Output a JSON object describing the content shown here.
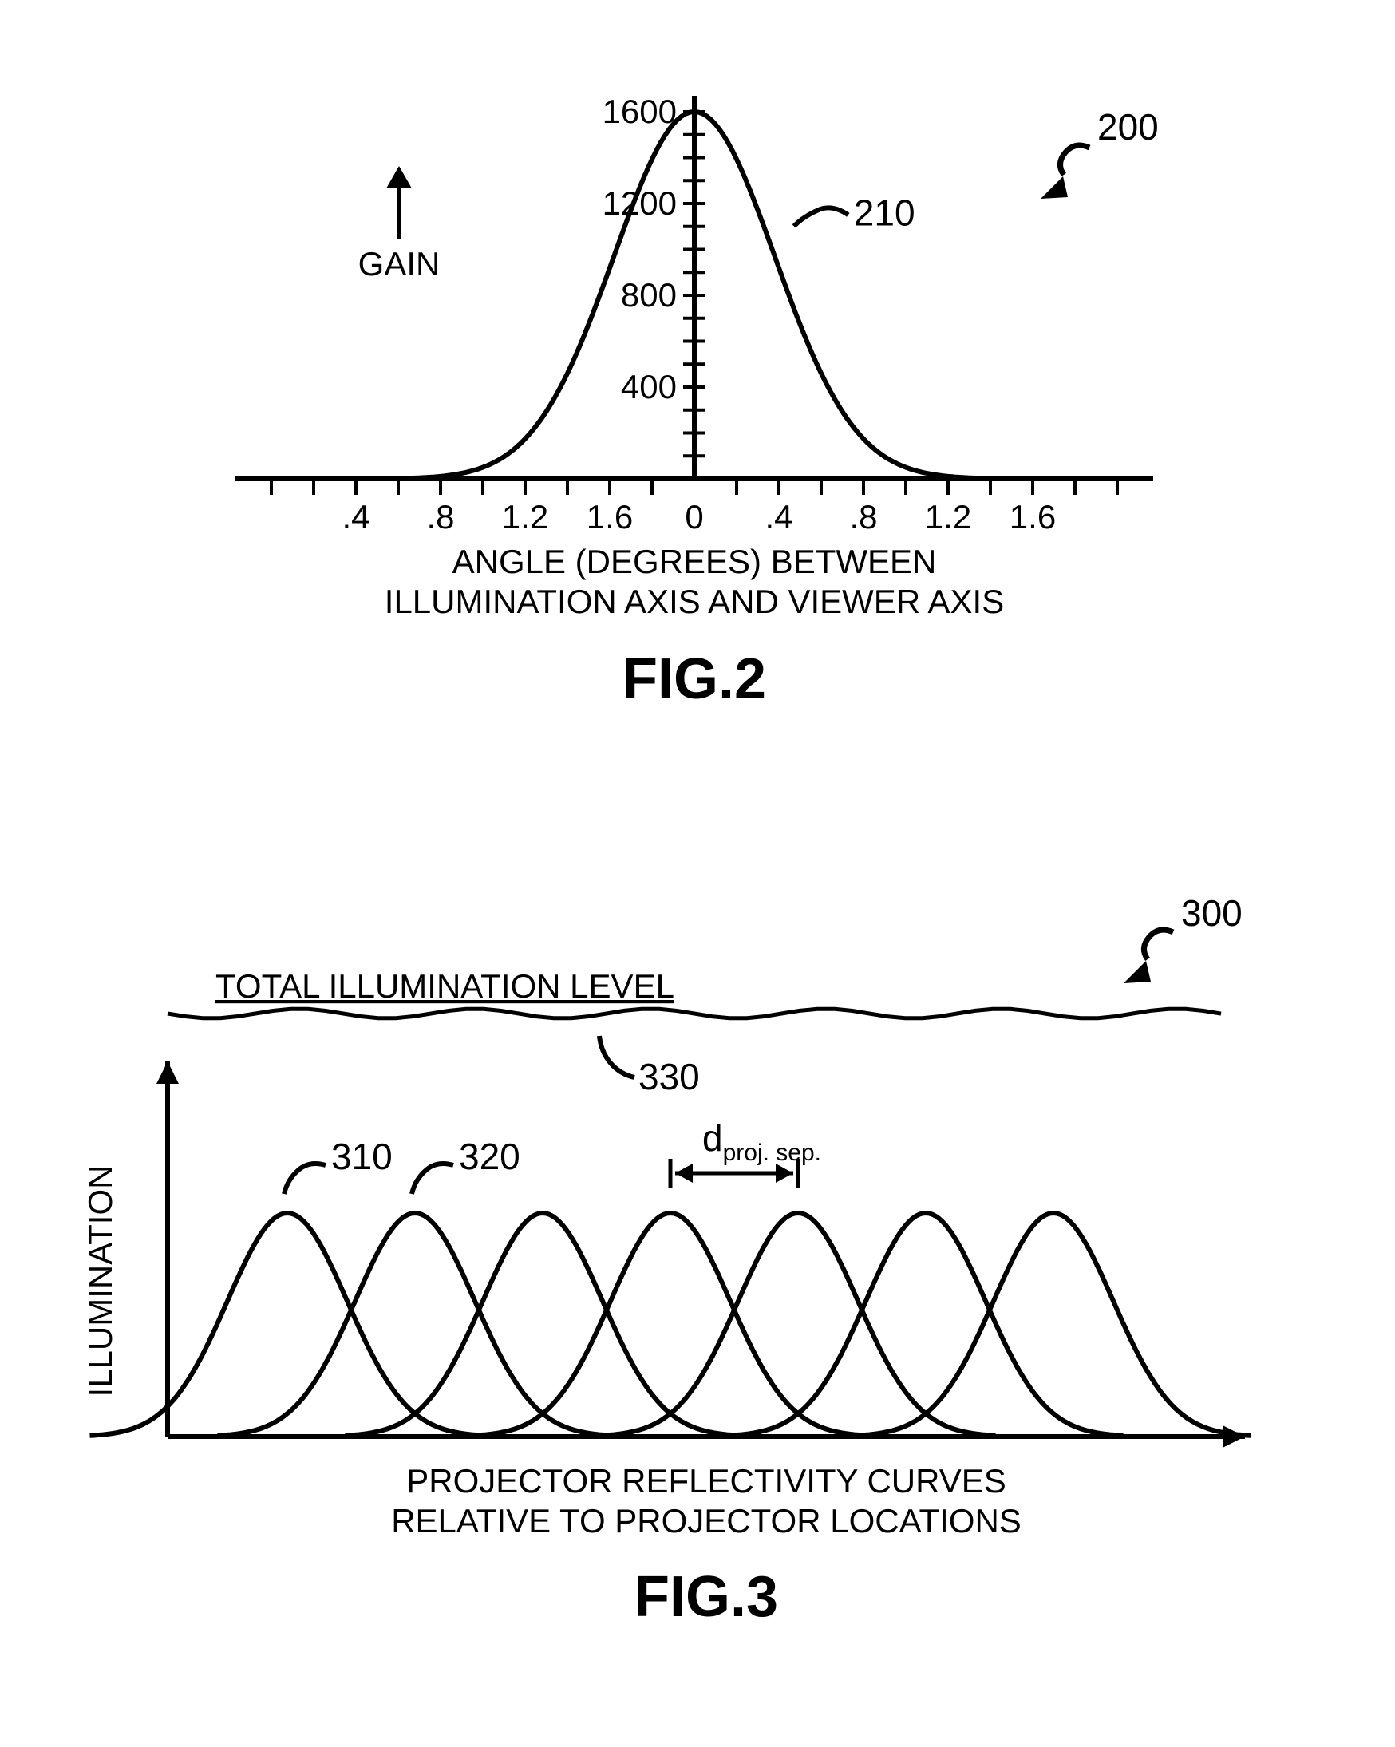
{
  "fig2": {
    "type": "line",
    "title": "FIG.2",
    "ylabel": "GAIN",
    "xlabel_line1": "ANGLE (DEGREES) BETWEEN",
    "xlabel_line2": "ILLUMINATION AXIS AND VIEWER AXIS",
    "ref_figure": "200",
    "ref_curve": "210",
    "x_ticks_left": [
      "1.6",
      "1.2",
      ".8",
      ".4"
    ],
    "x_ticks_right": [
      ".4",
      ".8",
      "1.2",
      "1.6"
    ],
    "x_center": "0",
    "y_ticks": [
      "400",
      "800",
      "1200",
      "1600"
    ],
    "y_max": 1600,
    "x_range": 2.0,
    "sigma": 0.38,
    "stroke": "#000000",
    "stroke_width": 6,
    "axis_stroke_width": 6
  },
  "fig3": {
    "type": "overlapping-gaussians",
    "title": "FIG.3",
    "ylabel": "ILLUMINATION",
    "xlabel_line1": "PROJECTOR REFLECTIVITY CURVES",
    "xlabel_line2": "RELATIVE TO PROJECTOR LOCATIONS",
    "ref_figure": "300",
    "ref_curve1": "310",
    "ref_curve2": "320",
    "ref_total": "330",
    "total_label": "TOTAL ILLUMINATION LEVEL",
    "sep_label_prefix": "d",
    "sep_label_sub": "proj. sep.",
    "num_curves": 7,
    "curve_spacing": 160,
    "curve_sigma": 75,
    "curve_height": 280,
    "stroke": "#000000",
    "stroke_width": 6,
    "axis_stroke_width": 6,
    "total_line_amplitude": 6
  },
  "colors": {
    "background": "#ffffff",
    "ink": "#000000"
  }
}
